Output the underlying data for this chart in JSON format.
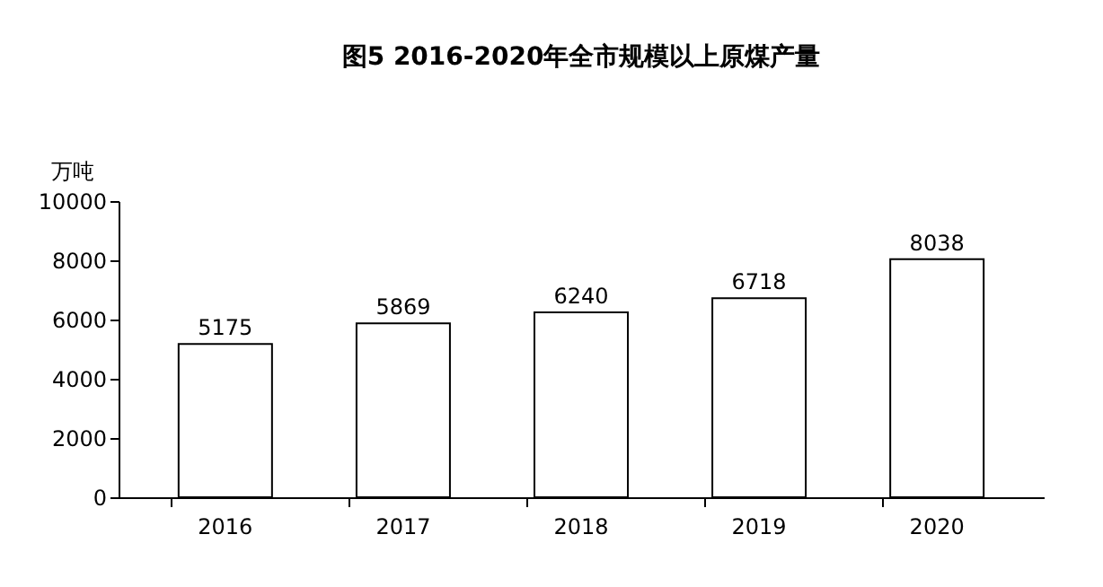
{
  "chart_data": {
    "type": "bar",
    "title": "图5  2016-2020年全市规模以上原煤产量",
    "ylabel": "万吨",
    "categories": [
      "2016",
      "2017",
      "2018",
      "2019",
      "2020"
    ],
    "values": [
      5175,
      5869,
      6240,
      6718,
      8038
    ],
    "color": "#ffffff",
    "ylim": [
      0,
      10000
    ],
    "yticks": [
      0,
      2000,
      4000,
      6000,
      8000,
      10000
    ],
    "grid": false,
    "data_labels": true
  }
}
